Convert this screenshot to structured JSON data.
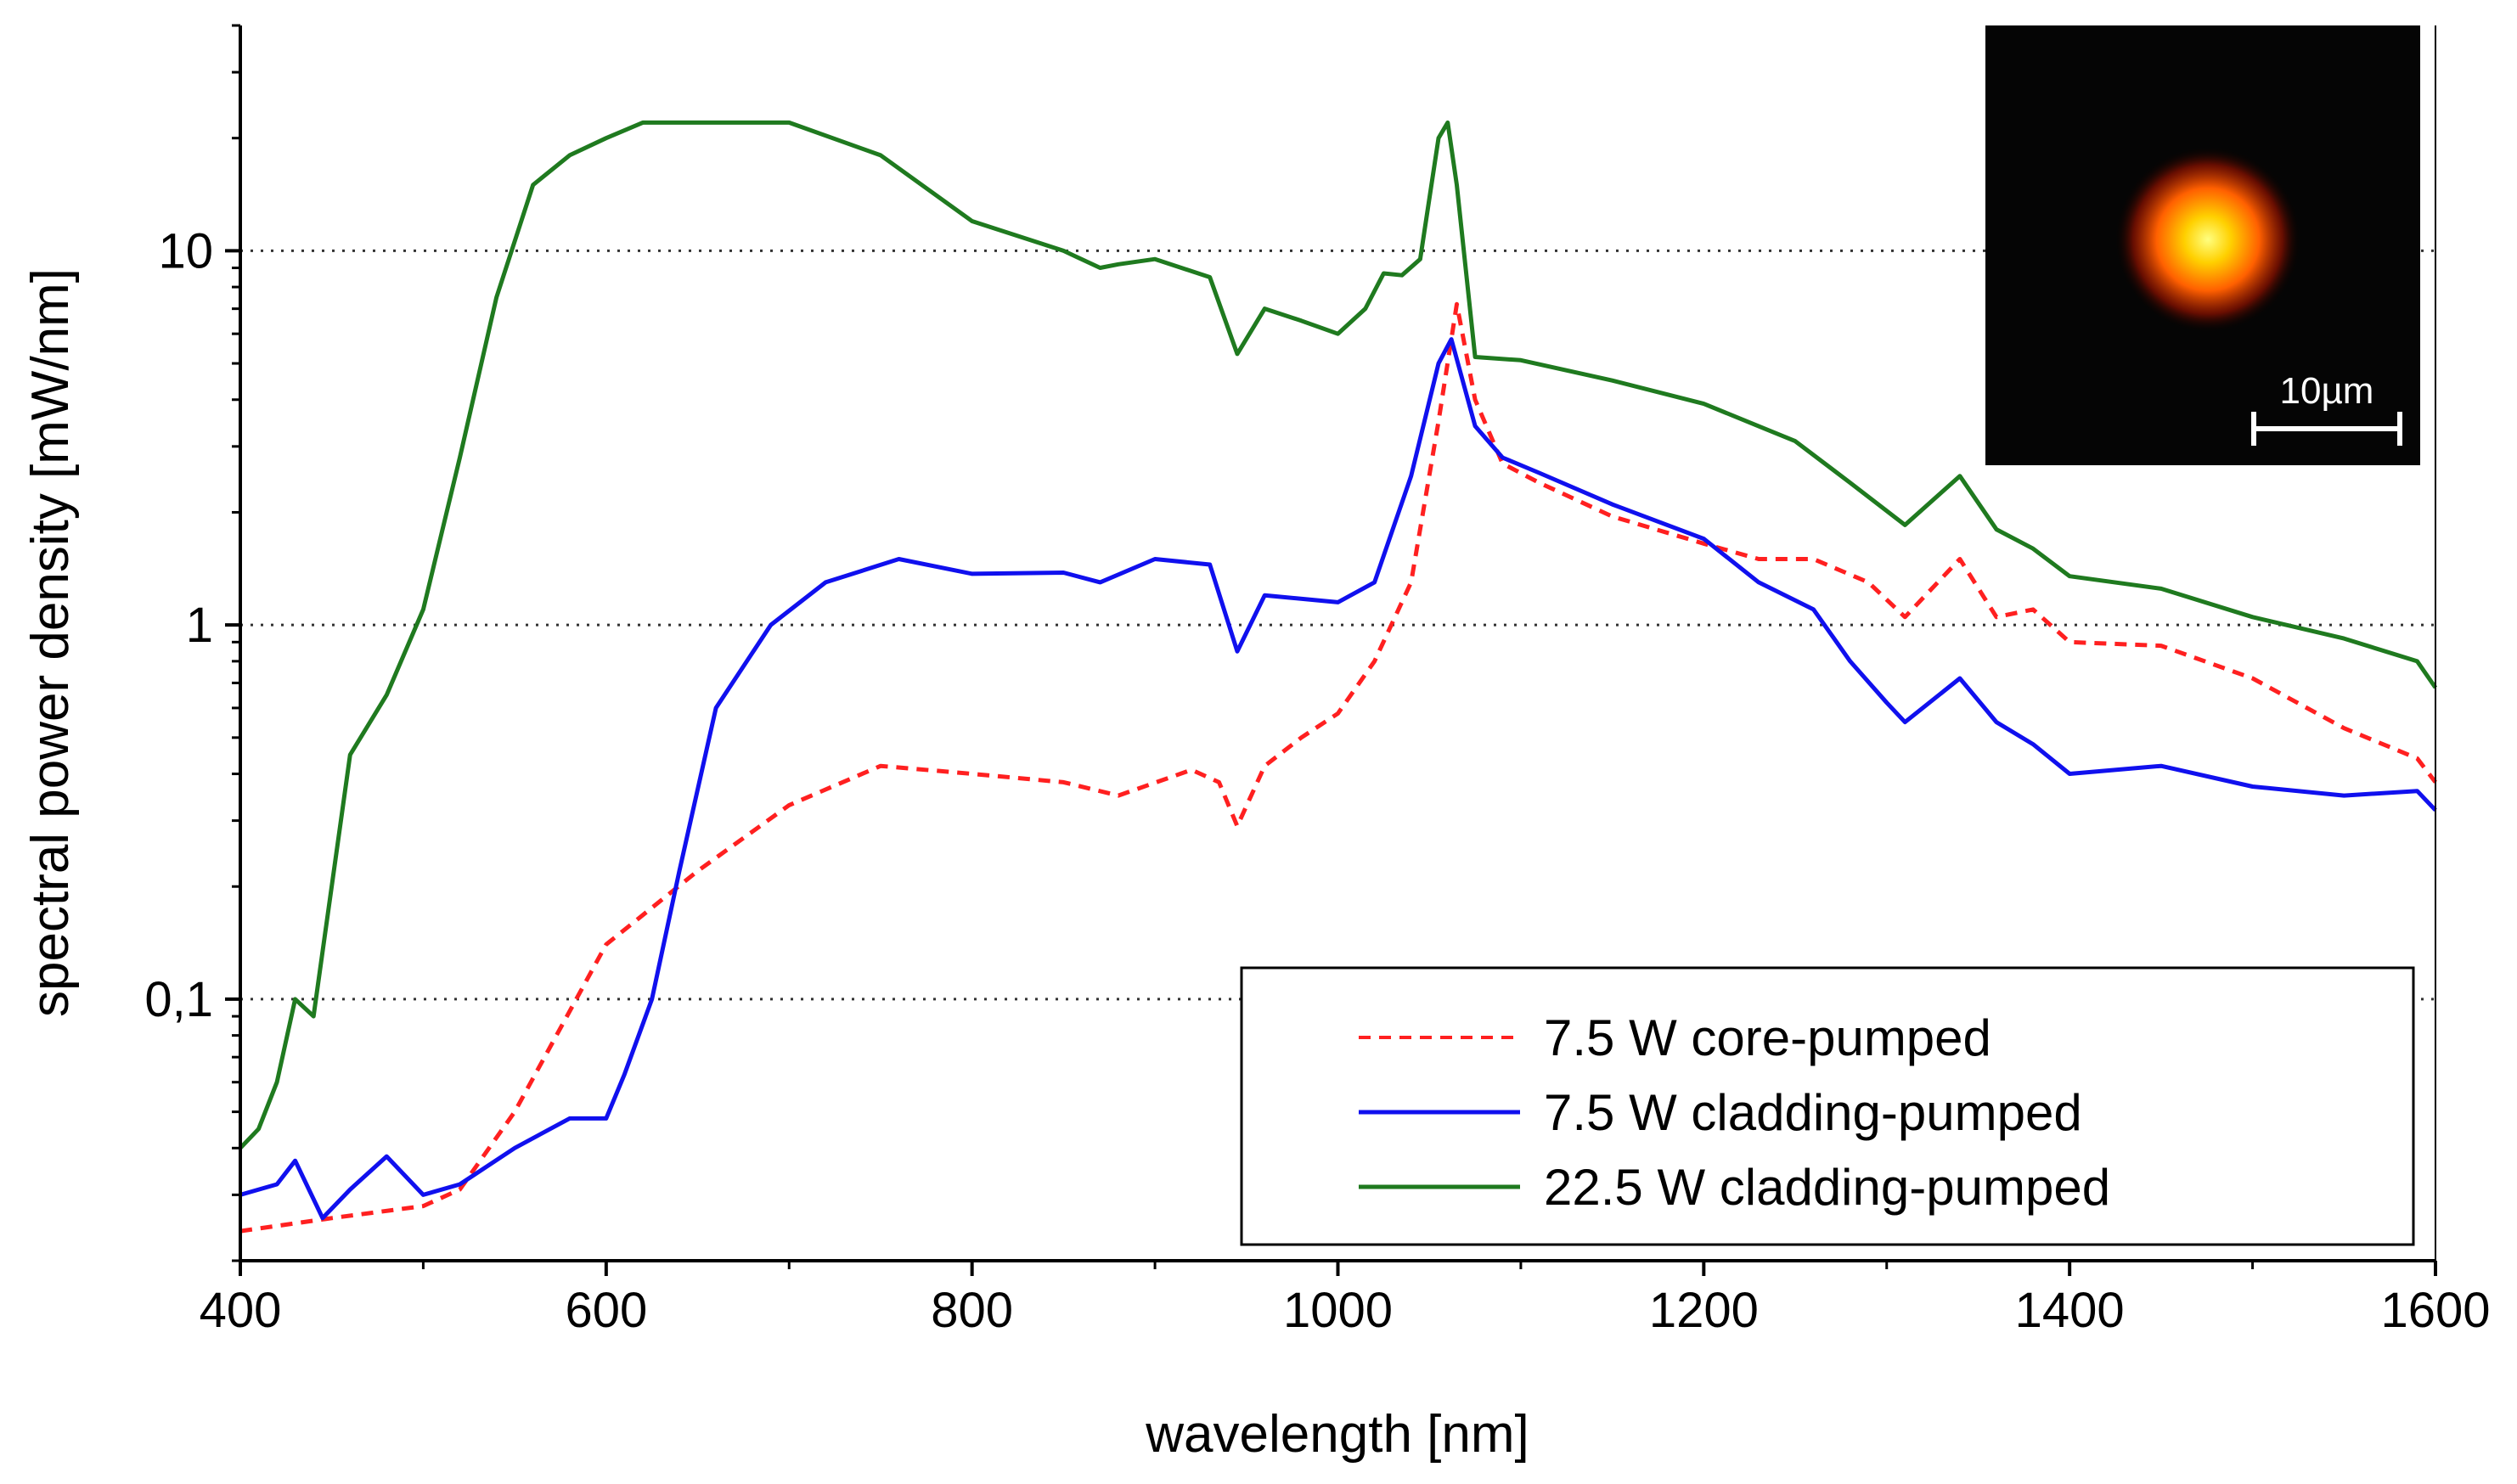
{
  "chart_data": {
    "type": "line",
    "title": "",
    "xlabel": "wavelength [nm]",
    "ylabel": "spectral power density [mW/nm]",
    "xlim": [
      400,
      1600
    ],
    "ylim": [
      0.02,
      40
    ],
    "yscale": "log",
    "x_ticks": [
      400,
      600,
      800,
      1000,
      1200,
      1400,
      1600
    ],
    "x_tick_labels": [
      "400",
      "600",
      "800",
      "1000",
      "1200",
      "1400",
      "1600"
    ],
    "y_ticks": [
      0.1,
      1,
      10
    ],
    "y_tick_labels": [
      "0,1",
      "1",
      "10"
    ],
    "gridlines": {
      "style": "dotted",
      "axis": "y",
      "values": [
        0.1,
        1,
        10
      ]
    },
    "legend": {
      "position": "bottom-right"
    },
    "series": [
      {
        "name": "7.5 W core-pumped",
        "color": "#ff2020",
        "dash": "dashed",
        "x": [
          400,
          450,
          500,
          520,
          550,
          600,
          650,
          700,
          750,
          800,
          850,
          880,
          920,
          935,
          945,
          960,
          980,
          1000,
          1020,
          1040,
          1055,
          1065,
          1075,
          1090,
          1110,
          1150,
          1200,
          1230,
          1260,
          1290,
          1310,
          1340,
          1360,
          1380,
          1400,
          1450,
          1500,
          1550,
          1590,
          1600
        ],
        "y": [
          0.024,
          0.026,
          0.028,
          0.031,
          0.05,
          0.14,
          0.22,
          0.33,
          0.42,
          0.4,
          0.38,
          0.35,
          0.41,
          0.38,
          0.29,
          0.42,
          0.5,
          0.58,
          0.8,
          1.3,
          3.5,
          7.2,
          4.0,
          2.7,
          2.4,
          1.95,
          1.65,
          1.5,
          1.5,
          1.3,
          1.05,
          1.5,
          1.05,
          1.1,
          0.9,
          0.88,
          0.72,
          0.53,
          0.44,
          0.38
        ]
      },
      {
        "name": "7.5 W cladding-pumped",
        "color": "#1010ee",
        "dash": "solid",
        "x": [
          400,
          420,
          430,
          445,
          460,
          480,
          500,
          520,
          550,
          580,
          600,
          610,
          625,
          640,
          660,
          690,
          720,
          760,
          800,
          850,
          870,
          900,
          930,
          945,
          960,
          1000,
          1020,
          1040,
          1055,
          1062,
          1075,
          1090,
          1110,
          1150,
          1200,
          1230,
          1260,
          1280,
          1300,
          1310,
          1340,
          1360,
          1380,
          1400,
          1450,
          1500,
          1550,
          1590,
          1600
        ],
        "y": [
          0.03,
          0.032,
          0.037,
          0.026,
          0.031,
          0.038,
          0.03,
          0.032,
          0.04,
          0.048,
          0.048,
          0.063,
          0.1,
          0.22,
          0.6,
          1.0,
          1.3,
          1.5,
          1.37,
          1.38,
          1.3,
          1.5,
          1.45,
          0.85,
          1.2,
          1.15,
          1.3,
          2.5,
          5.0,
          5.8,
          3.4,
          2.8,
          2.55,
          2.1,
          1.7,
          1.3,
          1.1,
          0.8,
          0.62,
          0.55,
          0.72,
          0.55,
          0.48,
          0.4,
          0.42,
          0.37,
          0.35,
          0.36,
          0.32
        ]
      },
      {
        "name": "22.5 W cladding-pumped",
        "color": "#1f7a1f",
        "dash": "solid",
        "x": [
          400,
          410,
          420,
          430,
          440,
          460,
          480,
          500,
          520,
          540,
          560,
          580,
          600,
          620,
          650,
          700,
          750,
          800,
          850,
          870,
          880,
          900,
          930,
          945,
          960,
          980,
          1000,
          1015,
          1025,
          1035,
          1045,
          1055,
          1060,
          1065,
          1075,
          1100,
          1150,
          1200,
          1250,
          1280,
          1310,
          1340,
          1360,
          1380,
          1400,
          1450,
          1500,
          1550,
          1590,
          1600
        ],
        "y": [
          0.04,
          0.045,
          0.06,
          0.1,
          0.09,
          0.45,
          0.65,
          1.1,
          2.8,
          7.5,
          15,
          18,
          20,
          22,
          22,
          22,
          18,
          12,
          10,
          9,
          9.2,
          9.5,
          8.5,
          5.3,
          7.0,
          6.5,
          6.0,
          7.0,
          8.7,
          8.6,
          9.5,
          20,
          22,
          15,
          5.2,
          5.1,
          4.5,
          3.9,
          3.1,
          2.4,
          1.85,
          2.5,
          1.8,
          1.6,
          1.35,
          1.25,
          1.05,
          0.92,
          0.8,
          0.68
        ]
      }
    ],
    "inset": {
      "scale_bar_label": "10µm"
    }
  }
}
